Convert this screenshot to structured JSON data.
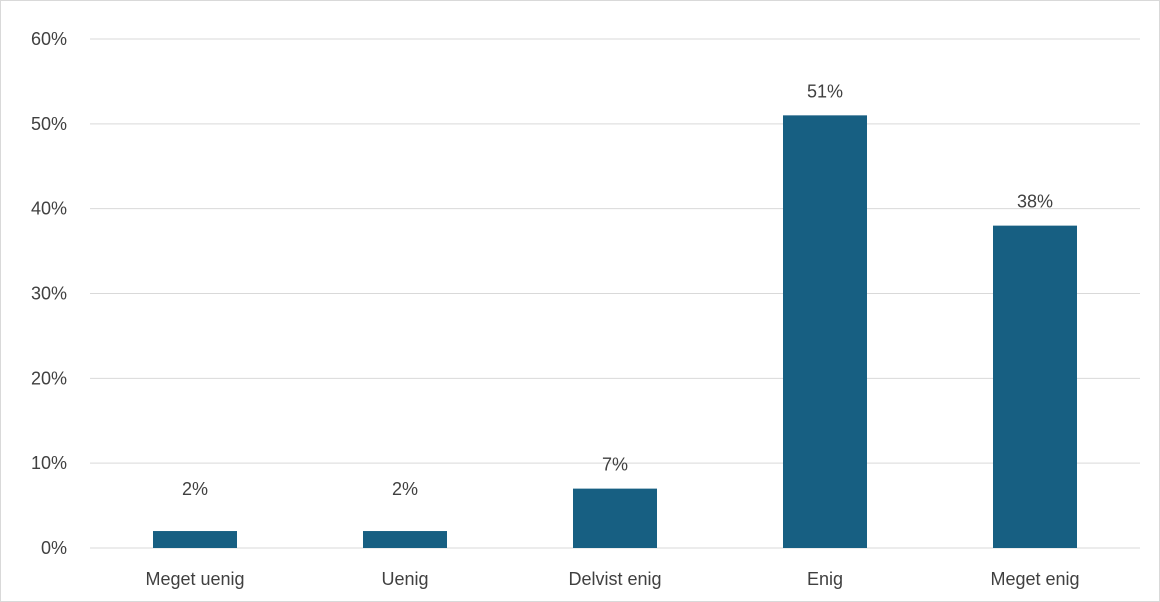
{
  "chart_data": {
    "type": "bar",
    "categories": [
      "Meget uenig",
      "Uenig",
      "Delvist enig",
      "Enig",
      "Meget enig"
    ],
    "values": [
      2,
      2,
      7,
      51,
      38
    ],
    "data_labels": [
      "2%",
      "2%",
      "7%",
      "51%",
      "38%"
    ],
    "ylim": [
      0,
      60
    ],
    "yticks": [
      0,
      10,
      20,
      30,
      40,
      50,
      60
    ],
    "ytick_labels": [
      "0%",
      "10%",
      "20%",
      "30%",
      "40%",
      "50%",
      "60%"
    ],
    "title": "",
    "xlabel": "",
    "ylabel": "",
    "grid": true,
    "bar_color": "#175f82",
    "grid_color": "#d9d9d9"
  }
}
